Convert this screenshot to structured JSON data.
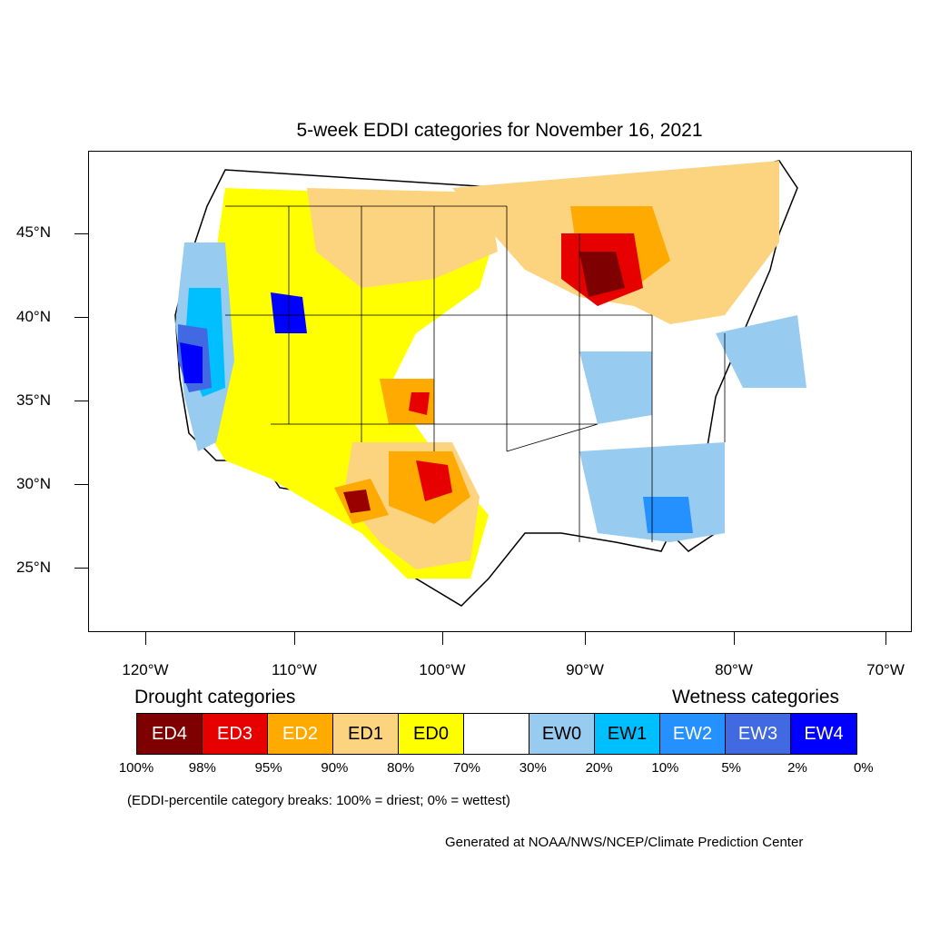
{
  "title": "5-week EDDI categories for November 16, 2021",
  "map": {
    "lat_labels": [
      "45°N",
      "40°N",
      "35°N",
      "30°N",
      "25°N"
    ],
    "lon_labels": [
      "120°W",
      "110°W",
      "100°W",
      "90°W",
      "80°W",
      "70°W"
    ]
  },
  "legend": {
    "drought_heading": "Drought categories",
    "wetness_heading": "Wetness categories",
    "categories": [
      {
        "label": "ED4",
        "color": "#7f0000"
      },
      {
        "label": "ED3",
        "color": "#e60000"
      },
      {
        "label": "ED2",
        "color": "#ffaa00"
      },
      {
        "label": "ED1",
        "color": "#fcd37f"
      },
      {
        "label": "ED0",
        "color": "#ffff00"
      },
      {
        "label": "",
        "color": "#ffffff"
      },
      {
        "label": "EW0",
        "color": "#98cbf0"
      },
      {
        "label": "EW1",
        "color": "#00bfff"
      },
      {
        "label": "EW2",
        "color": "#2491ff"
      },
      {
        "label": "EW3",
        "color": "#4169e1"
      },
      {
        "label": "EW4",
        "color": "#0000ff"
      }
    ],
    "breaks": [
      "100%",
      "98%",
      "95%",
      "90%",
      "80%",
      "70%",
      "30%",
      "20%",
      "10%",
      "5%",
      "2%",
      "0%"
    ]
  },
  "note": "(EDDI-percentile category breaks: 100% = driest; 0% = wettest)",
  "credit": "Generated at NOAA/NWS/NCEP/Climate Prediction Center"
}
